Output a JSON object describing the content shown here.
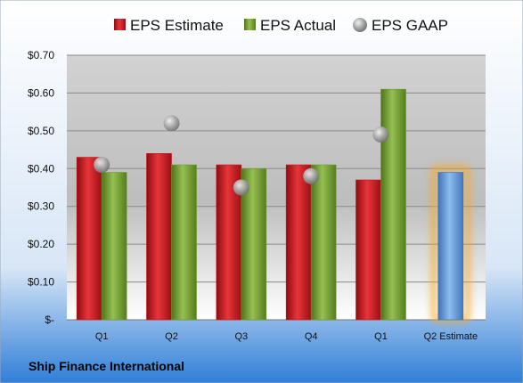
{
  "company": "Ship Finance International",
  "colors": {
    "estimate": "#c8141a",
    "actual": "#6f9a2c",
    "gaap": "#a9a9a9",
    "forecast": "#6a9fd8",
    "forecast_glow": "#f5a623"
  },
  "chart_data": {
    "type": "bar",
    "categories": [
      "Q1",
      "Q2",
      "Q3",
      "Q4",
      "Q1",
      "Q2 Estimate"
    ],
    "series": [
      {
        "name": "EPS Estimate",
        "values": [
          0.43,
          0.44,
          0.41,
          0.41,
          0.37,
          null
        ]
      },
      {
        "name": "EPS Actual",
        "values": [
          0.39,
          0.41,
          0.4,
          0.41,
          0.61,
          null
        ]
      },
      {
        "name": "EPS GAAP",
        "marker": "circle",
        "values": [
          0.41,
          0.52,
          0.35,
          0.38,
          0.49,
          null
        ]
      }
    ],
    "forecast": {
      "category": "Q2 Estimate",
      "value": 0.39
    },
    "yticks": [
      "$-",
      "$0.10",
      "$0.20",
      "$0.30",
      "$0.40",
      "$0.50",
      "$0.60",
      "$0.70"
    ],
    "ylim": [
      0,
      0.7
    ],
    "grid": true,
    "legend": "top"
  }
}
